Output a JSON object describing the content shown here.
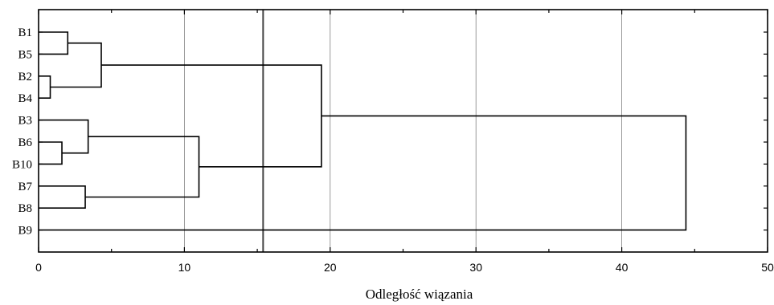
{
  "chart_data": {
    "type": "dendrogram",
    "orientation": "horizontal",
    "xlabel": "Odległość wiązania",
    "xlim": [
      0,
      50
    ],
    "xticks": [
      0,
      10,
      20,
      30,
      40,
      50
    ],
    "grid": true,
    "cut_line": 15.4,
    "leaves": [
      "B1",
      "B5",
      "B2",
      "B4",
      "B3",
      "B6",
      "B10",
      "B7",
      "B8",
      "B9"
    ],
    "merges": [
      {
        "a": "B2",
        "b": "B4",
        "distance": 0.8
      },
      {
        "a": "B6",
        "b": "B10",
        "distance": 1.6
      },
      {
        "a": "B1",
        "b": "B5",
        "distance": 2.0
      },
      {
        "a": "B7",
        "b": "B8",
        "distance": 3.2
      },
      {
        "a": "B3",
        "b": "B6+B10",
        "distance": 3.4
      },
      {
        "a": "B1+B5",
        "b": "B2+B4",
        "distance": 4.3
      },
      {
        "a": "B3+B6+B10",
        "b": "B7+B8",
        "distance": 11.0
      },
      {
        "a": "B1+B5+B2+B4",
        "b": "B3+B6+B10+B7+B8",
        "distance": 19.4
      },
      {
        "a": "B1+B5+B2+B4+B3+B6+B10+B7+B8",
        "b": "B9",
        "distance": 44.4
      }
    ]
  }
}
